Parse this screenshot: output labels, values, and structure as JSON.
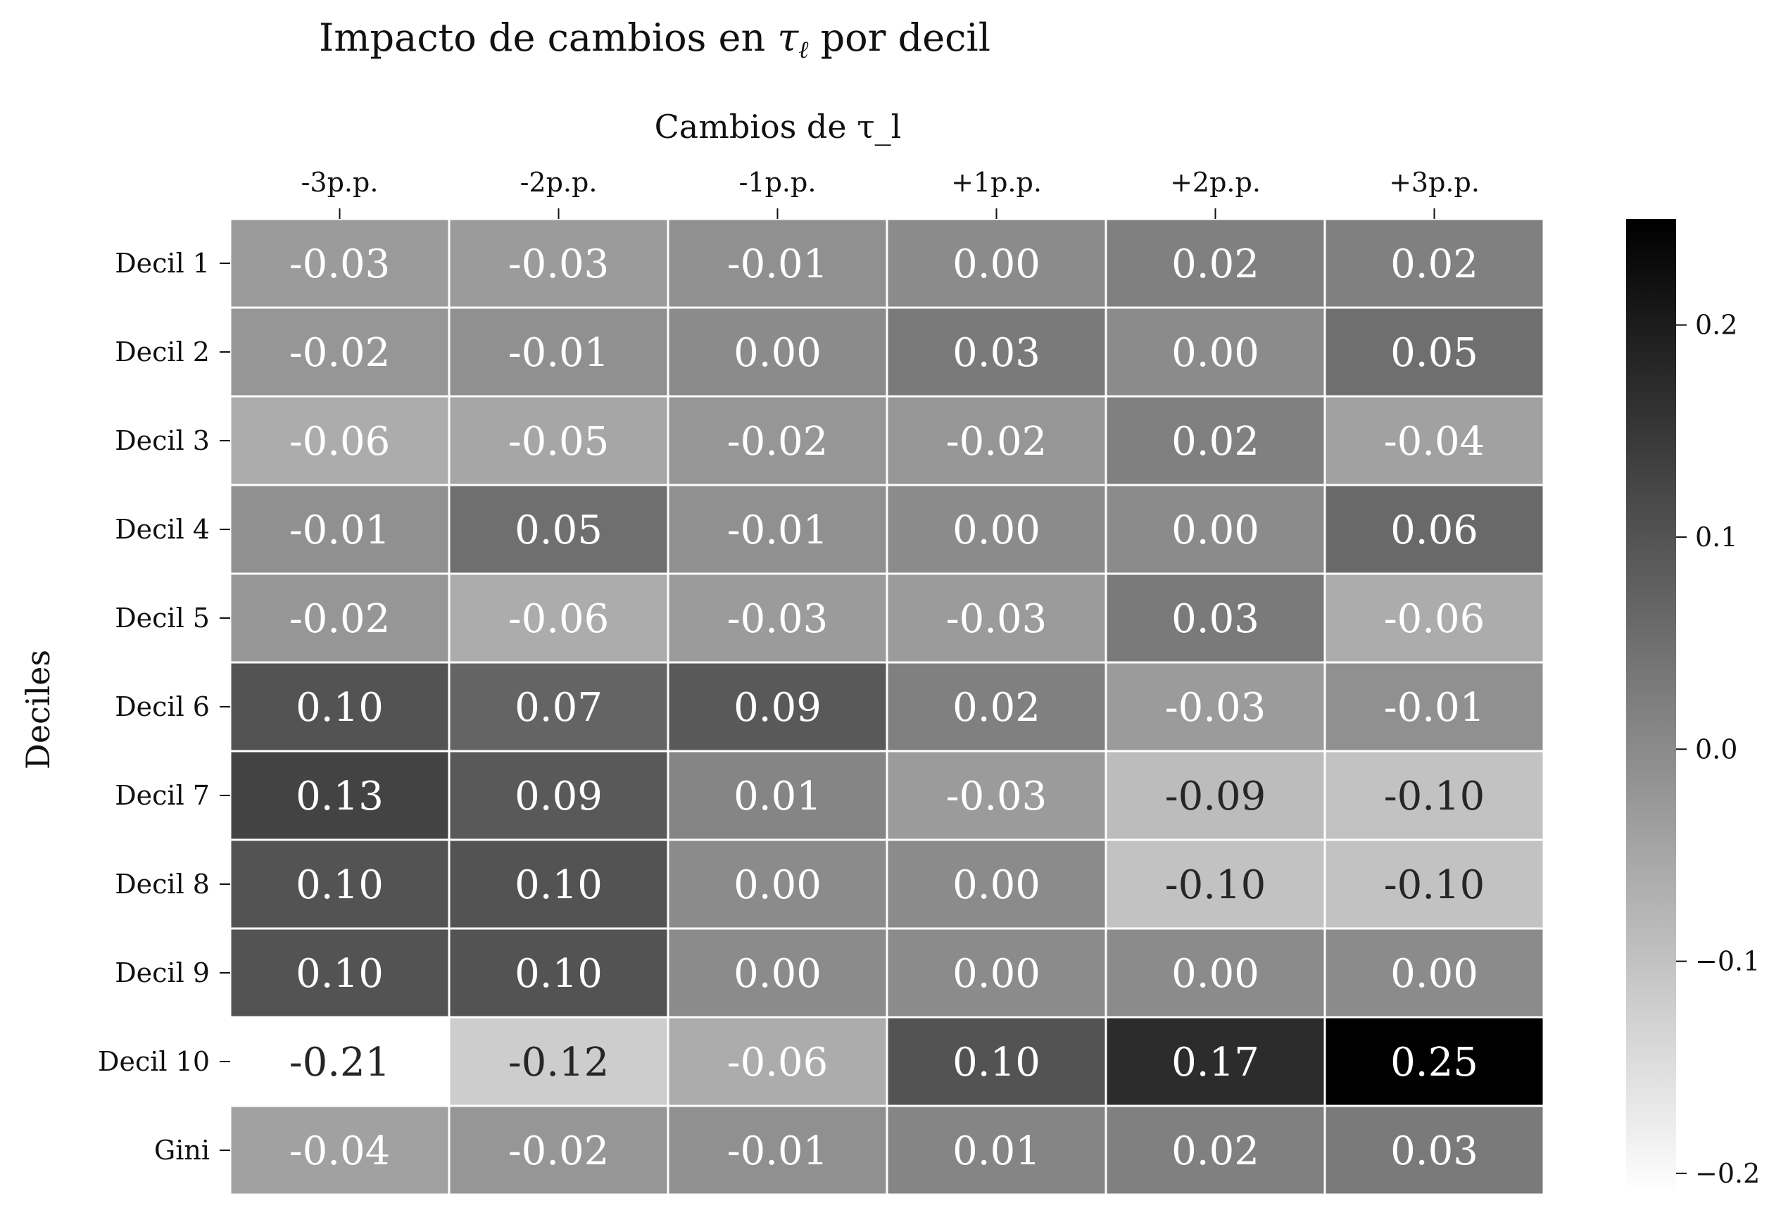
{
  "chart_data": {
    "type": "heatmap",
    "title_prefix": "Impacto de cambios en ",
    "title_tau": "τ",
    "title_sub": "ℓ",
    "title_suffix": " por decil",
    "xlabel": "Cambios de τ_l",
    "ylabel": "Deciles",
    "columns": [
      "-3p.p.",
      "-2p.p.",
      "-1p.p.",
      "+1p.p.",
      "+2p.p.",
      "+3p.p."
    ],
    "rows": [
      "Decil 1",
      "Decil 2",
      "Decil 3",
      "Decil 4",
      "Decil 5",
      "Decil 6",
      "Decil 7",
      "Decil 8",
      "Decil 9",
      "Decil 10",
      "Gini"
    ],
    "values": [
      [
        -0.03,
        -0.03,
        -0.01,
        0.0,
        0.02,
        0.02
      ],
      [
        -0.02,
        -0.01,
        0.0,
        0.03,
        0.0,
        0.05
      ],
      [
        -0.06,
        -0.05,
        -0.02,
        -0.02,
        0.02,
        -0.04
      ],
      [
        -0.01,
        0.05,
        -0.01,
        0.0,
        0.0,
        0.06
      ],
      [
        -0.02,
        -0.06,
        -0.03,
        -0.03,
        0.03,
        -0.06
      ],
      [
        0.1,
        0.07,
        0.09,
        0.02,
        -0.03,
        -0.01
      ],
      [
        0.13,
        0.09,
        0.01,
        -0.03,
        -0.09,
        -0.1
      ],
      [
        0.1,
        0.1,
        0.0,
        0.0,
        -0.1,
        -0.1
      ],
      [
        0.1,
        0.1,
        0.0,
        0.0,
        0.0,
        0.0
      ],
      [
        -0.21,
        -0.12,
        -0.06,
        0.1,
        0.17,
        0.25
      ],
      [
        -0.04,
        -0.02,
        -0.01,
        0.01,
        0.02,
        0.03
      ]
    ],
    "cell_labels": [
      [
        "-0.03",
        "-0.03",
        "-0.01",
        "0.00",
        "0.02",
        "0.02"
      ],
      [
        "-0.02",
        "-0.01",
        "0.00",
        "0.03",
        "0.00",
        "0.05"
      ],
      [
        "-0.06",
        "-0.05",
        "-0.02",
        "-0.02",
        "0.02",
        "-0.04"
      ],
      [
        "-0.01",
        "0.05",
        "-0.01",
        "0.00",
        "0.00",
        "0.06"
      ],
      [
        "-0.02",
        "-0.06",
        "-0.03",
        "-0.03",
        "0.03",
        "-0.06"
      ],
      [
        "0.10",
        "0.07",
        "0.09",
        "0.02",
        "-0.03",
        "-0.01"
      ],
      [
        "0.13",
        "0.09",
        "0.01",
        "-0.03",
        "-0.09",
        "-0.10"
      ],
      [
        "0.10",
        "0.10",
        "0.00",
        "0.00",
        "-0.10",
        "-0.10"
      ],
      [
        "0.10",
        "0.10",
        "0.00",
        "0.00",
        "0.00",
        "0.00"
      ],
      [
        "-0.21",
        "-0.12",
        "-0.06",
        "0.10",
        "0.17",
        "0.25"
      ],
      [
        "-0.04",
        "-0.02",
        "-0.01",
        "0.01",
        "0.02",
        "0.03"
      ]
    ],
    "colormap": "Greys",
    "vmin": -0.21,
    "vmax": 0.25,
    "colorbar_ticks": [
      0.2,
      0.1,
      0.0,
      -0.1,
      -0.2
    ],
    "colorbar_tick_labels": [
      "0.2",
      "0.1",
      "0.0",
      "−0.1",
      "−0.2"
    ],
    "grid_color": "#ffffff",
    "text_dark": "#262626",
    "text_light": "#ffffff"
  }
}
